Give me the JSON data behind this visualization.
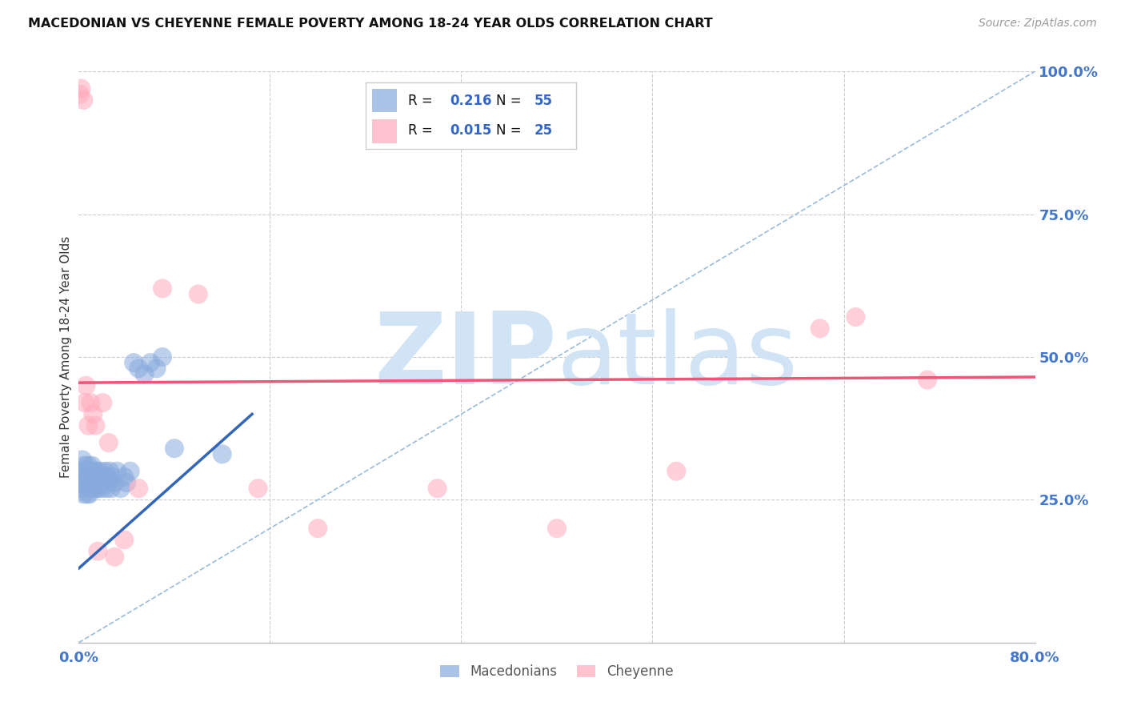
{
  "title": "MACEDONIAN VS CHEYENNE FEMALE POVERTY AMONG 18-24 YEAR OLDS CORRELATION CHART",
  "source": "Source: ZipAtlas.com",
  "ylabel": "Female Poverty Among 18-24 Year Olds",
  "xlim": [
    0.0,
    0.8
  ],
  "ylim": [
    0.0,
    1.0
  ],
  "grid_color": "#cccccc",
  "background_color": "#ffffff",
  "macedonian_color": "#88aadd",
  "cheyenne_color": "#ffaabb",
  "macedonian_R": 0.216,
  "macedonian_N": 55,
  "cheyenne_R": 0.015,
  "cheyenne_N": 25,
  "macedonian_line_color": "#3366bb",
  "cheyenne_line_color": "#ee5577",
  "diagonal_color": "#99bbdd",
  "watermark_color": "#d0e4f5",
  "legend_label_mac": "Macedonians",
  "legend_label_chey": "Cheyenne",
  "mac_x": [
    0.001,
    0.002,
    0.003,
    0.003,
    0.004,
    0.005,
    0.005,
    0.006,
    0.006,
    0.007,
    0.007,
    0.008,
    0.008,
    0.009,
    0.009,
    0.01,
    0.01,
    0.011,
    0.011,
    0.012,
    0.012,
    0.013,
    0.013,
    0.014,
    0.014,
    0.015,
    0.015,
    0.016,
    0.016,
    0.017,
    0.018,
    0.019,
    0.02,
    0.021,
    0.022,
    0.023,
    0.024,
    0.025,
    0.026,
    0.027,
    0.028,
    0.03,
    0.032,
    0.035,
    0.038,
    0.04,
    0.043,
    0.046,
    0.05,
    0.055,
    0.06,
    0.065,
    0.07,
    0.08,
    0.12
  ],
  "mac_y": [
    0.3,
    0.28,
    0.27,
    0.32,
    0.26,
    0.29,
    0.31,
    0.28,
    0.3,
    0.26,
    0.29,
    0.27,
    0.31,
    0.26,
    0.3,
    0.29,
    0.27,
    0.28,
    0.31,
    0.27,
    0.29,
    0.28,
    0.3,
    0.27,
    0.29,
    0.28,
    0.3,
    0.27,
    0.29,
    0.28,
    0.3,
    0.27,
    0.29,
    0.28,
    0.3,
    0.27,
    0.29,
    0.28,
    0.3,
    0.27,
    0.29,
    0.28,
    0.3,
    0.27,
    0.29,
    0.28,
    0.3,
    0.49,
    0.48,
    0.47,
    0.49,
    0.48,
    0.5,
    0.34,
    0.33
  ],
  "chey_x": [
    0.001,
    0.002,
    0.004,
    0.005,
    0.006,
    0.008,
    0.01,
    0.012,
    0.014,
    0.016,
    0.02,
    0.025,
    0.03,
    0.038,
    0.05,
    0.07,
    0.1,
    0.15,
    0.2,
    0.3,
    0.4,
    0.5,
    0.62,
    0.65,
    0.71
  ],
  "chey_y": [
    0.96,
    0.97,
    0.95,
    0.42,
    0.45,
    0.38,
    0.42,
    0.4,
    0.38,
    0.16,
    0.42,
    0.35,
    0.15,
    0.18,
    0.27,
    0.62,
    0.61,
    0.27,
    0.2,
    0.27,
    0.2,
    0.3,
    0.55,
    0.57,
    0.46
  ],
  "mac_line_x": [
    0.0,
    0.145
  ],
  "mac_line_y": [
    0.13,
    0.4
  ],
  "chey_line_x": [
    0.0,
    0.8
  ],
  "chey_line_y": [
    0.455,
    0.465
  ]
}
